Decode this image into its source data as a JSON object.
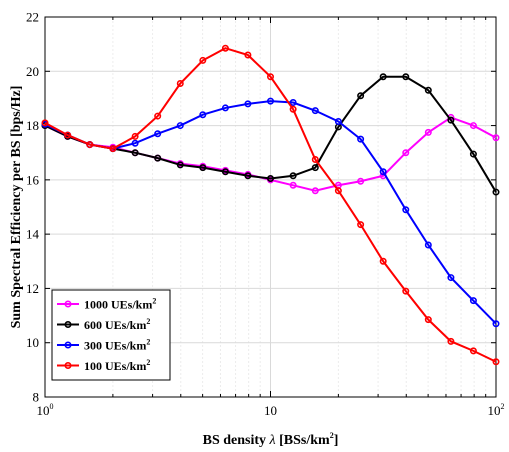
{
  "chart_data": {
    "type": "line",
    "title": "",
    "xlabel": {
      "prefix": "BS density ",
      "symbol": "λ",
      "unit": " [BSs/km",
      "unit_sup": "2",
      "unit_suffix": "]"
    },
    "ylabel": "Sum Spectral Efficiency per BS [bps/Hz]",
    "x_scale": "log",
    "xlim": [
      1,
      100
    ],
    "ylim": [
      8,
      22
    ],
    "grid": true,
    "legend_position": "bottom-left",
    "x_ticks": [
      {
        "value": 1,
        "base": "10",
        "exp": "0"
      },
      {
        "value": 10,
        "base": "10",
        "exp": ""
      },
      {
        "value": 100,
        "base": "10",
        "exp": "2"
      }
    ],
    "y_ticks": [
      8,
      10,
      12,
      14,
      16,
      18,
      20,
      22
    ],
    "x": [
      1.0,
      1.26,
      1.58,
      2.0,
      2.51,
      3.16,
      3.98,
      5.01,
      6.31,
      7.94,
      10.0,
      12.6,
      15.8,
      20.0,
      25.1,
      31.6,
      39.8,
      50.1,
      63.1,
      79.4,
      100.0
    ],
    "series": [
      {
        "name": "1000 UEs/km",
        "name_sup": "2",
        "color": "#ff00ff",
        "values": [
          18.0,
          17.6,
          17.3,
          17.2,
          17.0,
          16.8,
          16.6,
          16.5,
          16.35,
          16.2,
          16.0,
          15.8,
          15.6,
          15.8,
          15.95,
          16.15,
          17.0,
          17.75,
          18.3,
          18.0,
          17.55
        ]
      },
      {
        "name": "600 UEs/km",
        "name_sup": "2",
        "color": "#000000",
        "values": [
          18.0,
          17.6,
          17.3,
          17.15,
          17.0,
          16.8,
          16.55,
          16.45,
          16.3,
          16.15,
          16.05,
          16.15,
          16.45,
          17.95,
          19.1,
          19.8,
          19.8,
          19.3,
          18.2,
          16.95,
          15.55
        ]
      },
      {
        "name": "300 UEs/km",
        "name_sup": "2",
        "color": "#0000ff",
        "values": [
          18.05,
          17.65,
          17.3,
          17.15,
          17.35,
          17.7,
          18.0,
          18.4,
          18.65,
          18.8,
          18.9,
          18.85,
          18.55,
          18.15,
          17.5,
          16.3,
          14.9,
          13.6,
          12.4,
          11.55,
          10.7
        ]
      },
      {
        "name": "100 UEs/km",
        "name_sup": "2",
        "color": "#ff0000",
        "values": [
          18.1,
          17.65,
          17.3,
          17.15,
          17.6,
          18.35,
          19.55,
          20.4,
          20.85,
          20.6,
          19.8,
          18.6,
          16.75,
          15.6,
          14.35,
          13.0,
          11.9,
          10.85,
          10.05,
          9.7,
          9.3
        ]
      }
    ]
  }
}
